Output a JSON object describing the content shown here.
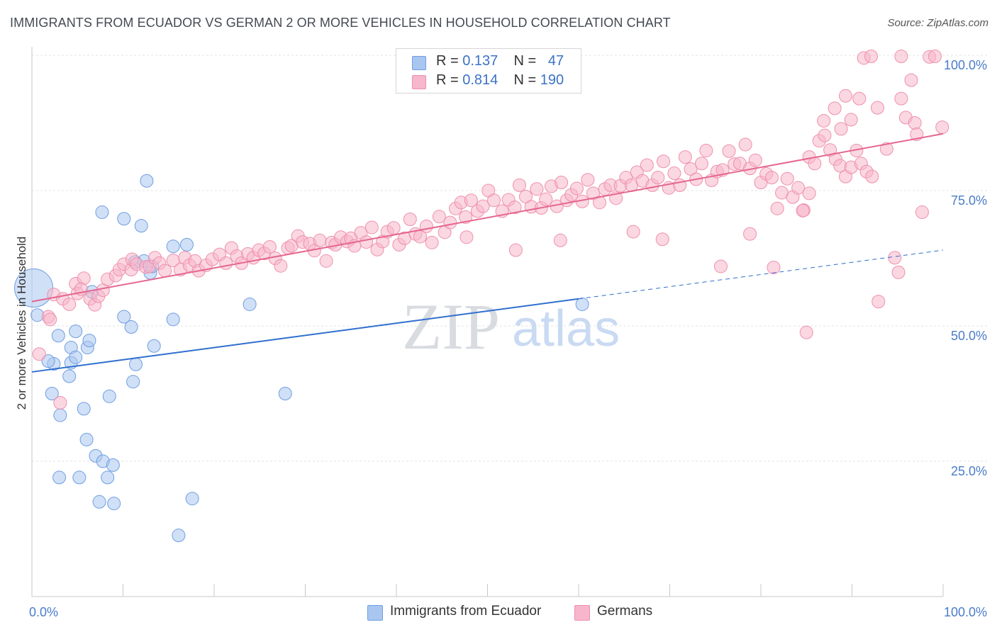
{
  "header": {
    "title": "IMMIGRANTS FROM ECUADOR VS GERMAN 2 OR MORE VEHICLES IN HOUSEHOLD CORRELATION CHART",
    "source": "Source: ZipAtlas.com"
  },
  "watermark": {
    "zip": "ZIP",
    "atlas": "atlas"
  },
  "legend": {
    "rows": [
      {
        "r_label": "R =",
        "r_value": "0.137",
        "n_label": "N =",
        "n_value": "47",
        "color": "#a9c6f0"
      },
      {
        "r_label": "R =",
        "r_value": "0.814",
        "n_label": "N =",
        "n_value": "190",
        "color": "#f7b6cb"
      }
    ]
  },
  "bottom_legend": {
    "items": [
      {
        "label": "Immigrants from Ecuador",
        "color": "#a9c6f0"
      },
      {
        "label": "Germans",
        "color": "#f7b6cb"
      }
    ]
  },
  "chart_data": {
    "type": "scatter",
    "title": "IMMIGRANTS FROM ECUADOR VS GERMAN 2 OR MORE VEHICLES IN HOUSEHOLD CORRELATION CHART",
    "xlabel": "",
    "ylabel": "2 or more Vehicles in Household",
    "xlim": [
      0,
      100
    ],
    "ylim": [
      0,
      100
    ],
    "x_ticks": [
      {
        "value": 0,
        "label": "0.0%"
      },
      {
        "value": 100,
        "label": "100.0%"
      }
    ],
    "y_ticks": [
      {
        "value": 25,
        "label": "25.0%"
      },
      {
        "value": 50,
        "label": "50.0%"
      },
      {
        "value": 75,
        "label": "75.0%"
      },
      {
        "value": 100,
        "label": "100.0%"
      }
    ],
    "grid": true,
    "series": [
      {
        "name": "Immigrants from Ecuador",
        "color": "#a9c6f0",
        "edge": "#6f9ee0",
        "line_color": "#2f6fcf",
        "trend": {
          "x0": 0,
          "y0": 41.5,
          "x1": 60,
          "y1": 55.0,
          "dash_to_x": 100,
          "dash_to_y": 64.0
        },
        "points": [
          [
            0.2,
            57.0,
            3.0
          ],
          [
            0.6,
            52.0,
            1
          ],
          [
            2.4,
            43.0,
            1
          ],
          [
            1.8,
            43.5,
            1
          ],
          [
            2.2,
            37.5,
            1
          ],
          [
            2.9,
            48.2,
            1
          ],
          [
            3.0,
            22.0,
            1
          ],
          [
            3.1,
            33.5,
            1
          ],
          [
            4.3,
            43.2,
            1
          ],
          [
            4.1,
            40.7,
            1
          ],
          [
            4.3,
            46.0,
            1
          ],
          [
            4.8,
            49.0,
            1
          ],
          [
            5.2,
            22.0,
            1
          ],
          [
            4.8,
            44.2,
            1
          ],
          [
            5.7,
            34.7,
            1
          ],
          [
            6.0,
            29.0,
            1
          ],
          [
            6.1,
            46.0,
            1
          ],
          [
            6.3,
            47.3,
            1
          ],
          [
            7.0,
            26.0,
            1
          ],
          [
            6.6,
            56.3,
            1
          ],
          [
            7.4,
            17.5,
            1
          ],
          [
            7.8,
            25.0,
            1
          ],
          [
            8.3,
            22.0,
            1
          ],
          [
            8.5,
            37.0,
            1
          ],
          [
            8.9,
            24.3,
            1
          ],
          [
            9.0,
            17.2,
            1
          ],
          [
            10.1,
            51.7,
            1
          ],
          [
            10.1,
            69.8,
            1
          ],
          [
            10.9,
            49.8,
            1
          ],
          [
            11.1,
            39.7,
            1
          ],
          [
            11.4,
            42.9,
            1
          ],
          [
            12.0,
            68.5,
            1
          ],
          [
            12.3,
            62.0,
            1
          ],
          [
            13.0,
            59.8,
            1
          ],
          [
            13.4,
            46.3,
            1
          ],
          [
            12.6,
            76.8,
            1
          ],
          [
            7.7,
            71.0,
            1
          ],
          [
            15.5,
            64.7,
            1
          ],
          [
            15.5,
            51.2,
            1
          ],
          [
            16.1,
            11.3,
            1
          ],
          [
            17.0,
            65.0,
            1
          ],
          [
            17.6,
            18.1,
            1
          ],
          [
            23.9,
            54.0,
            1
          ],
          [
            27.8,
            37.5,
            1
          ],
          [
            11.3,
            61.8,
            1
          ],
          [
            60.4,
            54.0,
            1
          ],
          [
            13.2,
            61.0,
            1
          ]
        ]
      },
      {
        "name": "Germans",
        "color": "#f7b6cb",
        "edge": "#ee90ad",
        "line_color": "#e5668f",
        "trend": {
          "x0": 0,
          "y0": 54.5,
          "x1": 100,
          "y1": 85.5
        },
        "points": [
          [
            0.8,
            44.8,
            1
          ],
          [
            1.8,
            51.7,
            1
          ],
          [
            2.0,
            51.2,
            1
          ],
          [
            2.4,
            55.8,
            1
          ],
          [
            3.1,
            35.8,
            1
          ],
          [
            3.4,
            55.0,
            1
          ],
          [
            4.1,
            54.0,
            1
          ],
          [
            4.8,
            57.8,
            1
          ],
          [
            5.0,
            56.0,
            1
          ],
          [
            5.7,
            58.8,
            1
          ],
          [
            5.4,
            56.8,
            1
          ],
          [
            6.4,
            55.0,
            1
          ],
          [
            6.9,
            53.9,
            1
          ],
          [
            7.3,
            55.5,
            1
          ],
          [
            7.8,
            56.6,
            1
          ],
          [
            8.3,
            58.6,
            1
          ],
          [
            9.2,
            59.3,
            1
          ],
          [
            9.6,
            60.4,
            1
          ],
          [
            10.1,
            61.4,
            1
          ],
          [
            10.9,
            60.4,
            1
          ],
          [
            11.0,
            62.3,
            1
          ],
          [
            11.5,
            61.4,
            1
          ],
          [
            12.5,
            60.9,
            1
          ],
          [
            12.9,
            61.0,
            1
          ],
          [
            13.5,
            62.6,
            1
          ],
          [
            14.0,
            61.6,
            1
          ],
          [
            14.6,
            60.2,
            1
          ],
          [
            15.5,
            62.1,
            1
          ],
          [
            16.3,
            60.4,
            1
          ],
          [
            16.8,
            62.6,
            1
          ],
          [
            17.3,
            61.2,
            1
          ],
          [
            17.9,
            62.0,
            1
          ],
          [
            18.3,
            60.2,
            1
          ],
          [
            19.1,
            61.2,
            1
          ],
          [
            19.8,
            62.3,
            1
          ],
          [
            20.6,
            63.2,
            1
          ],
          [
            21.3,
            61.6,
            1
          ],
          [
            21.9,
            64.4,
            1
          ],
          [
            22.5,
            62.9,
            1
          ],
          [
            23.0,
            61.6,
            1
          ],
          [
            23.7,
            63.3,
            1
          ],
          [
            24.3,
            62.6,
            1
          ],
          [
            24.9,
            64.0,
            1
          ],
          [
            25.5,
            63.4,
            1
          ],
          [
            26.1,
            64.6,
            1
          ],
          [
            26.7,
            62.5,
            1
          ],
          [
            27.3,
            61.1,
            1
          ],
          [
            28.1,
            64.4,
            1
          ],
          [
            28.5,
            64.8,
            1
          ],
          [
            29.2,
            66.6,
            1
          ],
          [
            29.7,
            65.5,
            1
          ],
          [
            30.5,
            65.2,
            1
          ],
          [
            31.0,
            63.9,
            1
          ],
          [
            31.6,
            65.8,
            1
          ],
          [
            32.3,
            62.0,
            1
          ],
          [
            32.9,
            65.4,
            1
          ],
          [
            33.3,
            65.0,
            1
          ],
          [
            33.9,
            66.4,
            1
          ],
          [
            34.6,
            65.6,
            1
          ],
          [
            35.0,
            66.2,
            1
          ],
          [
            35.4,
            64.8,
            1
          ],
          [
            36.1,
            67.2,
            1
          ],
          [
            36.7,
            65.5,
            1
          ],
          [
            37.3,
            68.2,
            1
          ],
          [
            37.9,
            64.1,
            1
          ],
          [
            38.5,
            65.6,
            1
          ],
          [
            39.0,
            67.4,
            1
          ],
          [
            39.7,
            68.1,
            1
          ],
          [
            40.3,
            65.0,
            1
          ],
          [
            40.9,
            66.2,
            1
          ],
          [
            41.5,
            69.7,
            1
          ],
          [
            42.1,
            67.0,
            1
          ],
          [
            42.6,
            66.5,
            1
          ],
          [
            43.3,
            68.4,
            1
          ],
          [
            43.9,
            65.4,
            1
          ],
          [
            44.7,
            70.2,
            1
          ],
          [
            45.3,
            67.3,
            1
          ],
          [
            45.9,
            69.1,
            1
          ],
          [
            46.5,
            71.7,
            1
          ],
          [
            47.1,
            72.8,
            1
          ],
          [
            47.6,
            70.1,
            1
          ],
          [
            48.2,
            73.2,
            1
          ],
          [
            48.9,
            71.2,
            1
          ],
          [
            49.5,
            72.1,
            1
          ],
          [
            50.1,
            75.0,
            1
          ],
          [
            50.7,
            73.2,
            1
          ],
          [
            51.6,
            71.2,
            1
          ],
          [
            52.3,
            73.3,
            1
          ],
          [
            53.0,
            71.9,
            1
          ],
          [
            53.5,
            76.0,
            1
          ],
          [
            54.2,
            73.9,
            1
          ],
          [
            54.8,
            72.0,
            1
          ],
          [
            55.4,
            75.3,
            1
          ],
          [
            55.9,
            71.8,
            1
          ],
          [
            56.4,
            73.4,
            1
          ],
          [
            57.0,
            75.8,
            1
          ],
          [
            57.6,
            72.1,
            1
          ],
          [
            58.1,
            76.5,
            1
          ],
          [
            58.7,
            73.2,
            1
          ],
          [
            59.2,
            74.2,
            1
          ],
          [
            59.8,
            75.4,
            1
          ],
          [
            60.4,
            73.0,
            1
          ],
          [
            61.0,
            77.0,
            1
          ],
          [
            61.6,
            74.5,
            1
          ],
          [
            62.3,
            72.8,
            1
          ],
          [
            62.9,
            75.3,
            1
          ],
          [
            63.5,
            76.0,
            1
          ],
          [
            64.1,
            73.6,
            1
          ],
          [
            64.6,
            75.9,
            1
          ],
          [
            65.2,
            77.4,
            1
          ],
          [
            65.8,
            76.0,
            1
          ],
          [
            66.4,
            78.4,
            1
          ],
          [
            67.0,
            76.8,
            1
          ],
          [
            67.5,
            79.7,
            1
          ],
          [
            68.1,
            76.0,
            1
          ],
          [
            68.7,
            77.4,
            1
          ],
          [
            69.3,
            80.4,
            1
          ],
          [
            69.9,
            75.5,
            1
          ],
          [
            70.5,
            78.2,
            1
          ],
          [
            71.1,
            76.0,
            1
          ],
          [
            71.7,
            81.2,
            1
          ],
          [
            72.3,
            79.0,
            1
          ],
          [
            72.9,
            77.1,
            1
          ],
          [
            73.5,
            80.0,
            1
          ],
          [
            74.0,
            82.4,
            1
          ],
          [
            74.6,
            76.9,
            1
          ],
          [
            75.2,
            78.5,
            1
          ],
          [
            75.8,
            78.8,
            1
          ],
          [
            76.5,
            82.3,
            1
          ],
          [
            77.1,
            79.9,
            1
          ],
          [
            77.7,
            80.0,
            1
          ],
          [
            78.3,
            83.5,
            1
          ],
          [
            78.8,
            79.1,
            1
          ],
          [
            79.4,
            80.6,
            1
          ],
          [
            80.0,
            76.5,
            1
          ],
          [
            80.6,
            78.1,
            1
          ],
          [
            81.2,
            77.4,
            1
          ],
          [
            81.8,
            71.7,
            1
          ],
          [
            82.3,
            74.6,
            1
          ],
          [
            82.9,
            77.2,
            1
          ],
          [
            83.5,
            73.8,
            1
          ],
          [
            84.1,
            75.5,
            1
          ],
          [
            84.7,
            71.4,
            1
          ],
          [
            85.3,
            81.2,
            1
          ],
          [
            85.9,
            80.0,
            1
          ],
          [
            86.4,
            84.2,
            1
          ],
          [
            87.0,
            85.2,
            1
          ],
          [
            87.6,
            82.5,
            1
          ],
          [
            88.2,
            80.8,
            1
          ],
          [
            88.7,
            79.6,
            1
          ],
          [
            89.3,
            77.6,
            1
          ],
          [
            89.9,
            79.3,
            1
          ],
          [
            90.5,
            82.4,
            1
          ],
          [
            91.0,
            80.0,
            1
          ],
          [
            91.6,
            78.5,
            1
          ],
          [
            92.2,
            77.6,
            1
          ],
          [
            75.6,
            61.0,
            1
          ],
          [
            78.8,
            67.0,
            1
          ],
          [
            81.4,
            60.8,
            1
          ],
          [
            84.6,
            71.3,
            1
          ],
          [
            85.0,
            48.8,
            1
          ],
          [
            86.9,
            87.9,
            1
          ],
          [
            88.1,
            90.2,
            1
          ],
          [
            89.3,
            92.5,
            1
          ],
          [
            89.9,
            88.1,
            1
          ],
          [
            88.8,
            86.4,
            1
          ],
          [
            90.8,
            92.0,
            1
          ],
          [
            91.3,
            99.5,
            1
          ],
          [
            92.1,
            99.8,
            1
          ],
          [
            92.8,
            90.3,
            1
          ],
          [
            93.8,
            82.7,
            1
          ],
          [
            94.7,
            62.6,
            1
          ],
          [
            95.1,
            59.9,
            1
          ],
          [
            95.4,
            99.8,
            1
          ],
          [
            95.4,
            92.0,
            1
          ],
          [
            95.9,
            88.5,
            1
          ],
          [
            96.5,
            95.4,
            1
          ],
          [
            96.9,
            87.5,
            1
          ],
          [
            97.1,
            85.4,
            1
          ],
          [
            97.7,
            71.0,
            1
          ],
          [
            98.5,
            99.7,
            1
          ],
          [
            99.1,
            99.8,
            1
          ],
          [
            99.9,
            86.7,
            1
          ],
          [
            92.9,
            54.5,
            1
          ],
          [
            85.3,
            74.5,
            1
          ],
          [
            69.2,
            66.0,
            1
          ],
          [
            66.0,
            67.4,
            1
          ],
          [
            58.0,
            65.8,
            1
          ],
          [
            53.1,
            64.0,
            1
          ],
          [
            47.7,
            66.4,
            1
          ]
        ]
      }
    ]
  }
}
